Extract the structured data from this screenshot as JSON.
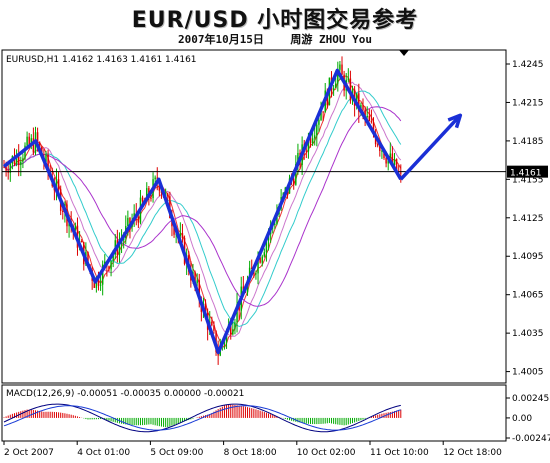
{
  "header": {
    "title": "EUR/USD 小时图交易参考",
    "subtitle": "2007年10月15日    周游 ZHOU You"
  },
  "chart_data": [
    {
      "type": "candlestick",
      "symbol_label": "EURUSD,H1  1.4162 1.4163 1.4161 1.4161",
      "ylim": [
        1.4,
        1.4245
      ],
      "y_ticks": [
        "1.4245",
        "1.4215",
        "1.4185",
        "1.4155",
        "1.4125",
        "1.4095",
        "1.4065",
        "1.4035",
        "1.4005"
      ],
      "y_tick_values": [
        1.4245,
        1.4215,
        1.4185,
        1.4155,
        1.4125,
        1.4095,
        1.4065,
        1.4035,
        1.4005
      ],
      "current_price": 1.4161,
      "current_price_label": "1.4161",
      "x_labels": [
        "2 Oct 2007",
        "4 Oct 01:00",
        "5 Oct 09:00",
        "8 Oct 18:00",
        "10 Oct 02:00",
        "11 Oct 10:00",
        "12 Oct 18:00"
      ],
      "x_label_positions": [
        0.0,
        0.15,
        0.3,
        0.45,
        0.6,
        0.75,
        0.9
      ],
      "grid": false,
      "colors": {
        "bull": "#00aa00",
        "bear": "#dd0000",
        "wave": "#1a2fd6",
        "ma_red": "#ee3333",
        "ma_cyan": "#33cccc",
        "ma_purple": "#aa33cc",
        "ma_pink": "#cc77cc"
      },
      "wave_path": [
        {
          "t": 0.0,
          "price": 1.4165
        },
        {
          "t": 0.08,
          "price": 1.4185
        },
        {
          "t": 0.23,
          "price": 1.4075
        },
        {
          "t": 0.39,
          "price": 1.4155
        },
        {
          "t": 0.54,
          "price": 1.402
        },
        {
          "t": 0.84,
          "price": 1.424
        },
        {
          "t": 1.0,
          "price": 1.4155
        }
      ],
      "arrow_target": {
        "t": 1.15,
        "price": 1.4205
      },
      "ohlc_count": 190
    },
    {
      "type": "histogram",
      "label": "MACD(12,26,9) -0.00051 -0.00035 0.00000 -0.00021",
      "ylim": [
        -0.00247,
        0.00245
      ],
      "y_ticks": [
        "0.00245",
        "0.00",
        "-0.00247"
      ],
      "y_tick_values": [
        0.00245,
        0.0,
        -0.00247
      ],
      "colors": {
        "bull": "#00aa00",
        "bear": "#dd0000",
        "line1": "#000080",
        "line2": "#1a3cd6"
      }
    }
  ]
}
